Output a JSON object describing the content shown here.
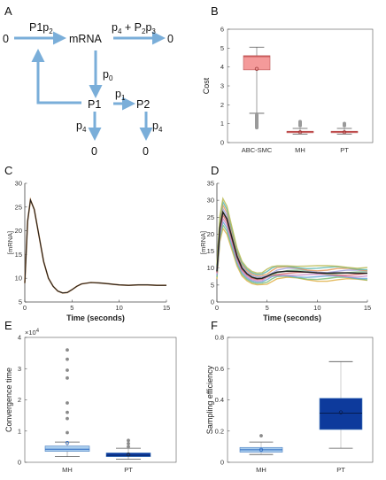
{
  "panel_labels": {
    "A": "A",
    "B": "B",
    "C": "C",
    "D": "D",
    "E": "E",
    "F": "F"
  },
  "diagram": {
    "source_left": "0",
    "mrna": "mRNA",
    "sink_right": "0",
    "p1_node": "P1",
    "p2_node": "P2",
    "sink_p1": "0",
    "sink_p2": "0",
    "rate_in": {
      "main": "P1p",
      "sub": "2"
    },
    "rate_deg": {
      "p4": "p",
      "p4sub": "4",
      "plus": " + P",
      "p2sub": "2",
      "p": "p",
      "p3sub": "3"
    },
    "rate_p0": {
      "main": "p",
      "sub": "0"
    },
    "rate_p1": {
      "main": "p",
      "sub": "1"
    },
    "rate_p4_left": {
      "main": "p",
      "sub": "4"
    },
    "rate_p4_right": {
      "main": "p",
      "sub": "4"
    }
  },
  "colors": {
    "arrow": "#7aaed9",
    "abc_box": "#f49a9a",
    "mh_box": "#a9cdee",
    "pt_box": "#0d3a9c",
    "trace": "#222222"
  },
  "chart_data": [
    {
      "panel": "B",
      "type": "box",
      "ylabel": "Cost",
      "ylim": [
        0,
        6
      ],
      "yticks": [
        "0",
        "1",
        "2",
        "3",
        "4",
        "5",
        "6"
      ],
      "categories": [
        "ABC-SMC",
        "MH",
        "PT"
      ],
      "boxes": [
        {
          "name": "ABC-SMC",
          "q1": 3.85,
          "median": 4.55,
          "q3": 4.6,
          "whisker_low": 1.55,
          "whisker_high": 5.05,
          "mean": 3.9,
          "outliers_range": [
            0.7,
            1.55
          ]
        },
        {
          "name": "MH",
          "q1": 0.52,
          "median": 0.57,
          "q3": 0.6,
          "whisker_low": 0.45,
          "whisker_high": 0.75,
          "mean": 0.55,
          "outliers_range": [
            0.8,
            1.2
          ]
        },
        {
          "name": "PT",
          "q1": 0.52,
          "median": 0.57,
          "q3": 0.6,
          "whisker_low": 0.45,
          "whisker_high": 0.75,
          "mean": 0.55,
          "outliers_range": [
            0.8,
            1.1
          ]
        }
      ]
    },
    {
      "panel": "C",
      "type": "line",
      "xlabel": "Time (seconds)",
      "ylabel": "[mRNA]",
      "xlim": [
        0,
        15
      ],
      "ylim": [
        5,
        30
      ],
      "xticks": [
        "0",
        "5",
        "10",
        "15"
      ],
      "yticks": [
        "5",
        "10",
        "15",
        "20",
        "25",
        "30"
      ],
      "x": [
        0,
        0.3,
        0.6,
        1.0,
        1.5,
        2.0,
        2.5,
        3.0,
        3.5,
        4.0,
        4.5,
        5.0,
        5.5,
        6.0,
        7.0,
        8.0,
        9.0,
        10.0,
        11.0,
        12.0,
        13.0,
        14.0,
        15.0
      ],
      "y": [
        9.0,
        22.0,
        26.5,
        24.5,
        19.0,
        13.5,
        10.0,
        8.3,
        7.3,
        6.9,
        7.0,
        7.6,
        8.3,
        8.8,
        9.1,
        9.0,
        8.8,
        8.6,
        8.5,
        8.6,
        8.6,
        8.5,
        8.5
      ]
    },
    {
      "panel": "D",
      "type": "line",
      "xlabel": "Time (seconds)",
      "ylabel": "[mRNA]",
      "xlim": [
        0,
        15
      ],
      "ylim": [
        0,
        35
      ],
      "xticks": [
        "0",
        "5",
        "10",
        "15"
      ],
      "yticks": [
        "0",
        "5",
        "10",
        "15",
        "20",
        "25",
        "30",
        "35"
      ],
      "series": [
        {
          "values": [
            9.0,
            22.0,
            26.5,
            24.5,
            19.0,
            13.5,
            10.0,
            8.3,
            7.3,
            6.9,
            7.0,
            7.6,
            8.3,
            8.8,
            9.1,
            9.0,
            8.8,
            8.6,
            8.5,
            8.6,
            8.6,
            8.5,
            8.5
          ]
        }
      ],
      "x": [
        0,
        0.3,
        0.6,
        1.0,
        1.5,
        2.0,
        2.5,
        3.0,
        3.5,
        4.0,
        4.5,
        5.0,
        5.5,
        6.0,
        7.0,
        8.0,
        9.0,
        10.0,
        11.0,
        12.0,
        13.0,
        14.0,
        15.0
      ]
    },
    {
      "panel": "E",
      "type": "box",
      "ylabel": "Convergence time",
      "exponent": {
        "base": "×10",
        "power": "4"
      },
      "ylim": [
        0,
        4
      ],
      "yticks": [
        "0",
        "1",
        "2",
        "3",
        "4"
      ],
      "categories": [
        "MH",
        "PT"
      ],
      "boxes": [
        {
          "name": "MH",
          "q1": 0.35,
          "median": 0.42,
          "q3": 0.52,
          "whisker_low": 0.18,
          "whisker_high": 0.65,
          "mean": 0.62,
          "outliers": [
            0.95,
            1.4,
            1.6,
            1.9,
            2.7,
            2.95,
            3.3,
            3.6
          ]
        },
        {
          "name": "PT",
          "q1": 0.18,
          "median": 0.22,
          "q3": 0.3,
          "whisker_low": 0.1,
          "whisker_high": 0.45,
          "mean": 0.25,
          "outliers": [
            0.5,
            0.6,
            0.7
          ]
        }
      ]
    },
    {
      "panel": "F",
      "type": "box",
      "ylabel": "Sampling efficiency",
      "ylim": [
        0,
        0.8
      ],
      "yticks": [
        "0",
        "0.2",
        "0.4",
        "0.6",
        "0.8"
      ],
      "categories": [
        "MH",
        "PT"
      ],
      "boxes": [
        {
          "name": "MH",
          "q1": 0.065,
          "median": 0.08,
          "q3": 0.095,
          "whisker_low": 0.05,
          "whisker_high": 0.13,
          "mean": 0.08,
          "outliers": [
            0.17
          ]
        },
        {
          "name": "PT",
          "q1": 0.21,
          "median": 0.315,
          "q3": 0.41,
          "whisker_low": 0.09,
          "whisker_high": 0.645,
          "mean": 0.32,
          "outliers": []
        }
      ]
    }
  ]
}
